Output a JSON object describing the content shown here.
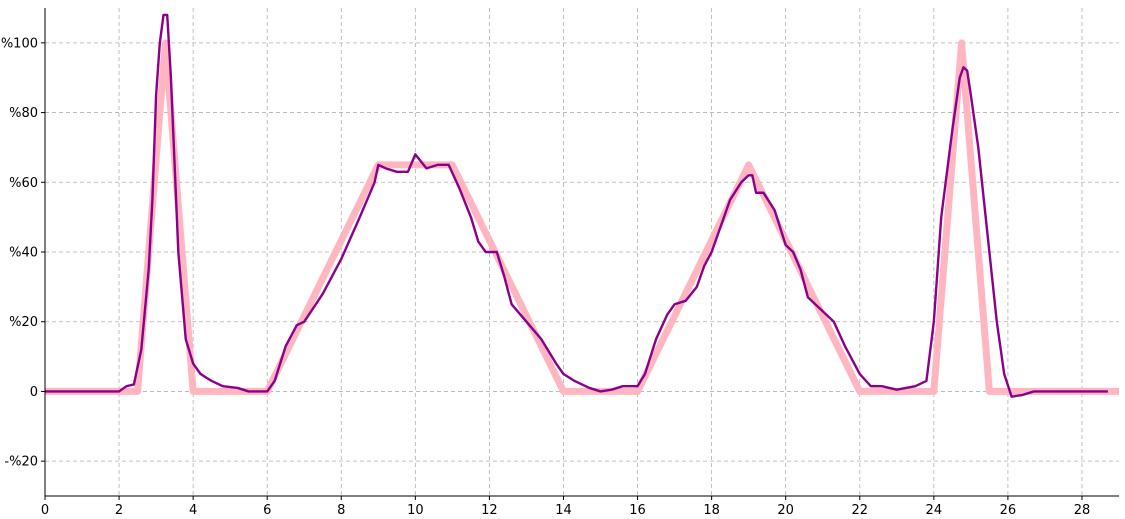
{
  "chart_data": {
    "type": "line",
    "title": "",
    "xlabel": "",
    "ylabel": "",
    "xlim": [
      0,
      29
    ],
    "ylim": [
      -30,
      110
    ],
    "grid": true,
    "legend": "none",
    "x_ticks": [
      0,
      2,
      4,
      6,
      8,
      10,
      12,
      14,
      16,
      18,
      20,
      22,
      24,
      26,
      28
    ],
    "x_tick_labels": [
      "0",
      "2",
      "4",
      "6",
      "8",
      "10",
      "12",
      "14",
      "16",
      "18",
      "20",
      "22",
      "24",
      "26",
      "28"
    ],
    "y_ticks": [
      -20,
      0,
      20,
      40,
      60,
      80,
      100
    ],
    "y_tick_labels": [
      "-%20",
      "0",
      "%20",
      "%40",
      "%60",
      "%80",
      "%100"
    ],
    "series": [
      {
        "color": "#ffb6c1",
        "x": [
          0,
          2.5,
          3.25,
          4.0,
          6.0,
          9.0,
          11.0,
          14.0,
          16.0,
          19.0,
          22.0,
          24.0,
          24.75,
          25.5,
          29
        ],
        "y": [
          0,
          0,
          100,
          0,
          0,
          65,
          65,
          0,
          0,
          65,
          0,
          0,
          100,
          0,
          0
        ]
      },
      {
        "color": "#8b008b",
        "x": [
          0,
          2.0,
          2.2,
          2.4,
          2.6,
          2.8,
          2.9,
          3.0,
          3.1,
          3.2,
          3.3,
          3.4,
          3.6,
          3.8,
          4.0,
          4.2,
          4.5,
          4.8,
          5.2,
          5.5,
          6.0,
          6.2,
          6.5,
          6.8,
          7.0,
          7.5,
          8.0,
          8.5,
          8.9,
          9.0,
          9.2,
          9.5,
          9.8,
          10.0,
          10.3,
          10.6,
          10.9,
          11.2,
          11.5,
          11.7,
          11.9,
          12.0,
          12.2,
          12.4,
          12.6,
          13.0,
          13.4,
          13.8,
          14.0,
          14.3,
          14.7,
          15.0,
          15.3,
          15.6,
          16.0,
          16.2,
          16.5,
          16.8,
          17.0,
          17.3,
          17.6,
          17.8,
          18.0,
          18.2,
          18.5,
          18.8,
          19.0,
          19.1,
          19.2,
          19.4,
          19.7,
          20.0,
          20.2,
          20.4,
          20.6,
          21.0,
          21.3,
          21.6,
          22.0,
          22.3,
          22.6,
          23.0,
          23.5,
          23.8,
          24.0,
          24.2,
          24.5,
          24.7,
          24.8,
          24.9,
          25.0,
          25.2,
          25.5,
          25.7,
          25.9,
          26.1,
          26.4,
          26.7,
          27.0,
          28.0,
          28.7
        ],
        "y": [
          0,
          0,
          1.5,
          2,
          12,
          35,
          55,
          85,
          100,
          108,
          108,
          90,
          40,
          15,
          8,
          5,
          3,
          1.5,
          1,
          0,
          0,
          3,
          13,
          19,
          20,
          28,
          38,
          50,
          60,
          65,
          64,
          63,
          63,
          68,
          64,
          65,
          65,
          58,
          50,
          43,
          40,
          40,
          40,
          33,
          25,
          20,
          15,
          8,
          5,
          3,
          1,
          0,
          0.5,
          1.5,
          1.5,
          5,
          15,
          22,
          25,
          26,
          30,
          36,
          40,
          46,
          55,
          60,
          62,
          62,
          57,
          57,
          52,
          42,
          40,
          35,
          27,
          23,
          20,
          13,
          5,
          1.5,
          1.5,
          0.5,
          1.5,
          3,
          20,
          50,
          75,
          90,
          93,
          92,
          85,
          70,
          40,
          20,
          5,
          -1.5,
          -1,
          0,
          0,
          0,
          0
        ]
      }
    ]
  }
}
